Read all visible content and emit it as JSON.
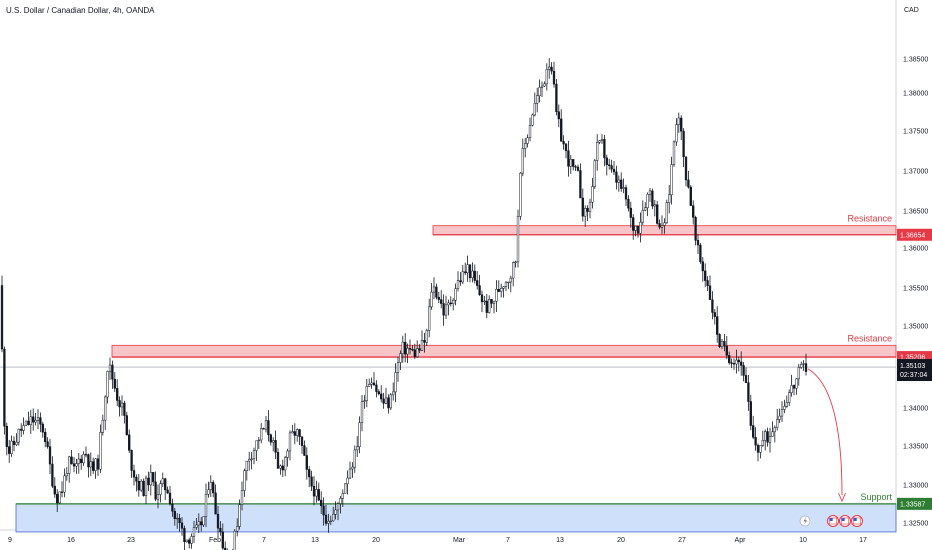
{
  "header": {
    "title": "U.S. Dollar / Canadian Dollar, 4h, OANDA",
    "currency": "CAD"
  },
  "colors": {
    "candle": "#131722",
    "resistance_fill": "#f7c5c8",
    "resistance_line": "#e53945",
    "support_fill": "#cfe0fb",
    "support_line": "#2e7d32",
    "price_tag": "#131722",
    "arrow": "#e53945",
    "flag_blue": "#3b5bdb"
  },
  "chart_data": {
    "type": "candlestick",
    "symbol": "USDCAD",
    "timeframe": "4h",
    "ylim": [
      1.3255,
      1.3945
    ],
    "yticks": [
      "1.38500",
      "1.38000",
      "1.37500",
      "1.37000",
      "1.36500",
      "1.36000",
      "1.35500",
      "1.35000",
      "1.34500",
      "1.34000",
      "1.33500",
      "1.33000",
      "1.32500"
    ],
    "xticks": [
      "9",
      "16",
      "23",
      "Feb",
      "7",
      "13",
      "20",
      "Mar",
      "7",
      "13",
      "20",
      "27",
      "Apr",
      "10",
      "17"
    ],
    "close_path": [
      [
        0,
        1.36
      ],
      [
        4,
        1.3455
      ],
      [
        8,
        1.3415
      ],
      [
        14,
        1.3425
      ],
      [
        20,
        1.344
      ],
      [
        26,
        1.3445
      ],
      [
        32,
        1.3452
      ],
      [
        38,
        1.3448
      ],
      [
        44,
        1.344
      ],
      [
        50,
        1.34
      ],
      [
        56,
        1.3365
      ],
      [
        62,
        1.3375
      ],
      [
        68,
        1.3405
      ],
      [
        74,
        1.3395
      ],
      [
        80,
        1.341
      ],
      [
        86,
        1.3415
      ],
      [
        92,
        1.3395
      ],
      [
        98,
        1.3405
      ],
      [
        104,
        1.347
      ],
      [
        108,
        1.3515
      ],
      [
        112,
        1.35
      ],
      [
        118,
        1.3475
      ],
      [
        124,
        1.346
      ],
      [
        128,
        1.342
      ],
      [
        132,
        1.34
      ],
      [
        138,
        1.338
      ],
      [
        144,
        1.3375
      ],
      [
        150,
        1.339
      ],
      [
        156,
        1.337
      ],
      [
        162,
        1.338
      ],
      [
        168,
        1.3375
      ],
      [
        174,
        1.3345
      ],
      [
        180,
        1.3335
      ],
      [
        186,
        1.332
      ],
      [
        192,
        1.3325
      ],
      [
        198,
        1.333
      ],
      [
        204,
        1.3345
      ],
      [
        210,
        1.3395
      ],
      [
        214,
        1.336
      ],
      [
        218,
        1.334
      ],
      [
        224,
        1.331
      ],
      [
        230,
        1.329
      ],
      [
        236,
        1.333
      ],
      [
        242,
        1.338
      ],
      [
        248,
        1.341
      ],
      [
        254,
        1.342
      ],
      [
        260,
        1.3435
      ],
      [
        266,
        1.3445
      ],
      [
        272,
        1.343
      ],
      [
        278,
        1.3395
      ],
      [
        284,
        1.3405
      ],
      [
        290,
        1.343
      ],
      [
        296,
        1.344
      ],
      [
        302,
        1.342
      ],
      [
        308,
        1.3385
      ],
      [
        314,
        1.3375
      ],
      [
        320,
        1.3355
      ],
      [
        326,
        1.3345
      ],
      [
        332,
        1.3345
      ],
      [
        338,
        1.3355
      ],
      [
        344,
        1.338
      ],
      [
        350,
        1.34
      ],
      [
        356,
        1.3415
      ],
      [
        360,
        1.3455
      ],
      [
        366,
        1.349
      ],
      [
        372,
        1.35
      ],
      [
        378,
        1.348
      ],
      [
        384,
        1.347
      ],
      [
        390,
        1.347
      ],
      [
        396,
        1.3505
      ],
      [
        402,
        1.353
      ],
      [
        408,
        1.353
      ],
      [
        414,
        1.3525
      ],
      [
        420,
        1.353
      ],
      [
        426,
        1.354
      ],
      [
        432,
        1.36
      ],
      [
        438,
        1.359
      ],
      [
        444,
        1.357
      ],
      [
        450,
        1.358
      ],
      [
        456,
        1.36
      ],
      [
        462,
        1.361
      ],
      [
        468,
        1.362
      ],
      [
        474,
        1.3605
      ],
      [
        480,
        1.359
      ],
      [
        486,
        1.3575
      ],
      [
        492,
        1.358
      ],
      [
        498,
        1.3595
      ],
      [
        504,
        1.3605
      ],
      [
        510,
        1.361
      ],
      [
        516,
        1.363
      ],
      [
        520,
        1.373
      ],
      [
        526,
        1.376
      ],
      [
        532,
        1.379
      ],
      [
        538,
        1.381
      ],
      [
        544,
        1.3825
      ],
      [
        548,
        1.385
      ],
      [
        552,
        1.384
      ],
      [
        556,
        1.379
      ],
      [
        560,
        1.377
      ],
      [
        566,
        1.3745
      ],
      [
        572,
        1.373
      ],
      [
        578,
        1.372
      ],
      [
        584,
        1.3675
      ],
      [
        590,
        1.369
      ],
      [
        596,
        1.375
      ],
      [
        602,
        1.3755
      ],
      [
        608,
        1.373
      ],
      [
        614,
        1.372
      ],
      [
        620,
        1.371
      ],
      [
        626,
        1.3695
      ],
      [
        632,
        1.3665
      ],
      [
        638,
        1.3665
      ],
      [
        644,
        1.369
      ],
      [
        650,
        1.3705
      ],
      [
        656,
        1.368
      ],
      [
        662,
        1.366
      ],
      [
        668,
        1.369
      ],
      [
        674,
        1.376
      ],
      [
        678,
        1.38
      ],
      [
        684,
        1.3735
      ],
      [
        690,
        1.37
      ],
      [
        696,
        1.3645
      ],
      [
        702,
        1.362
      ],
      [
        708,
        1.36
      ],
      [
        714,
        1.3565
      ],
      [
        720,
        1.3535
      ],
      [
        726,
        1.3525
      ],
      [
        732,
        1.352
      ],
      [
        738,
        1.352
      ],
      [
        744,
        1.3505
      ],
      [
        748,
        1.347
      ],
      [
        752,
        1.343
      ],
      [
        758,
        1.342
      ],
      [
        764,
        1.343
      ],
      [
        770,
        1.3435
      ],
      [
        776,
        1.3455
      ],
      [
        782,
        1.3465
      ],
      [
        788,
        1.348
      ],
      [
        794,
        1.349
      ],
      [
        800,
        1.3505
      ],
      [
        806,
        1.351
      ]
    ],
    "current_price": "1.35103",
    "countdown": "02:37:04",
    "zones": [
      {
        "label": "Resistance",
        "price_tag": "1.36654",
        "top": 1.3666,
        "bottom": 1.3656,
        "x_start": 433
      },
      {
        "label": "Resistance",
        "price_tag": "1.35206",
        "top": 1.3534,
        "bottom": 1.3521,
        "x_start": 112
      },
      {
        "label": "Support",
        "price_tag": "1.33587",
        "top": 1.3359,
        "bottom": 1.3328,
        "x_start": 16
      }
    ],
    "projection": {
      "from": 1.3508,
      "to": 1.3362
    }
  }
}
